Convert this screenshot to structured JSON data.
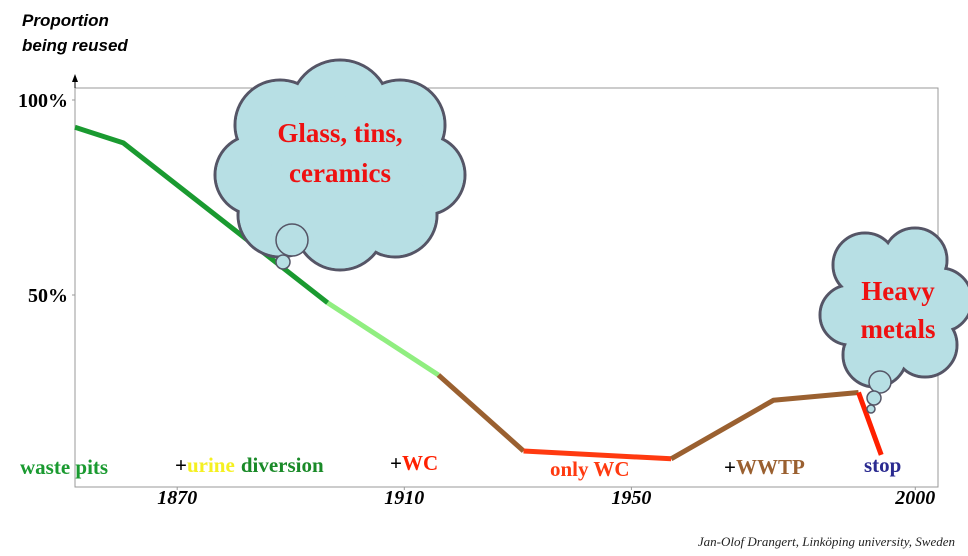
{
  "chart_data": {
    "type": "line",
    "y_label_lines": [
      "Proportion",
      "being reused"
    ],
    "xlim": [
      1852,
      2004
    ],
    "xticks": [
      1870,
      1910,
      1950,
      2000
    ],
    "ylim": [
      0,
      100
    ],
    "yticks": [
      {
        "value": 100,
        "label": "100%"
      },
      {
        "value": 50,
        "label": "50%"
      }
    ],
    "series": [
      {
        "color": "#1a9a30",
        "x": [
          1852,
          1860.5,
          1896.5
        ],
        "values": [
          93,
          89,
          48
        ]
      },
      {
        "color": "#90ee80",
        "x": [
          1896.5,
          1916
        ],
        "values": [
          48,
          29.5
        ]
      },
      {
        "color": "#9a6030",
        "x": [
          1916,
          1931
        ],
        "values": [
          29.5,
          10
        ]
      },
      {
        "color": "#ff3a10",
        "x": [
          1931,
          1957
        ],
        "values": [
          10,
          8
        ]
      },
      {
        "color": "#9a6030",
        "x": [
          1957,
          1975,
          1990
        ],
        "values": [
          8,
          23,
          25
        ]
      },
      {
        "color": "#ff2000",
        "x": [
          1990,
          1994
        ],
        "values": [
          25,
          9
        ]
      }
    ],
    "phases": {
      "waste_pits": "waste pits",
      "urine_diversion": [
        "+",
        "urine",
        "diversion"
      ],
      "wc": [
        "+",
        "WC"
      ],
      "only_wc": "only WC",
      "wwtp": [
        "+",
        "WWTP"
      ],
      "stop": "stop"
    },
    "clouds": [
      [
        "Glass, tins,",
        "ceramics"
      ],
      [
        "Heavy",
        "metals"
      ]
    ],
    "credit": "Jan-Olof Drangert, Linköping university, Sweden"
  }
}
